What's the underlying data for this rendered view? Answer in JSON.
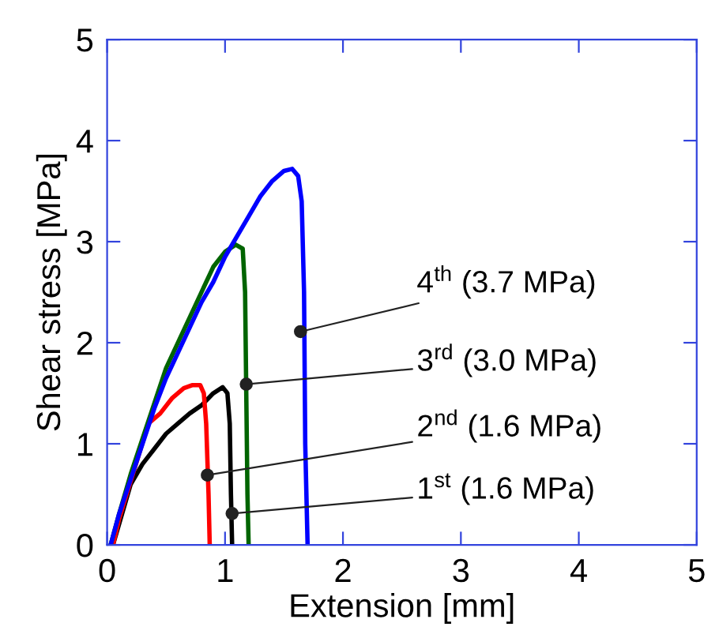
{
  "chart_data": {
    "type": "line",
    "xlabel": "Extension [mm]",
    "ylabel": "Shear stress [MPa]",
    "xlim": [
      0,
      5
    ],
    "ylim": [
      0,
      5
    ],
    "xticks": [
      0,
      1,
      2,
      3,
      4,
      5
    ],
    "yticks": [
      0,
      1,
      2,
      3,
      4,
      5
    ],
    "grid": false,
    "legend": false,
    "marker": "none",
    "line_style": "solid",
    "series": [
      {
        "color": "#000000",
        "x": [
          0.05,
          0.1,
          0.2,
          0.3,
          0.4,
          0.5,
          0.6,
          0.7,
          0.8,
          0.9,
          0.98,
          1.02,
          1.04,
          1.05,
          1.06
        ],
        "values": [
          0,
          0.2,
          0.6,
          0.8,
          0.95,
          1.1,
          1.2,
          1.3,
          1.38,
          1.5,
          1.56,
          1.5,
          1.2,
          0.5,
          0
        ]
      },
      {
        "color": "#ff0000",
        "x": [
          0.05,
          0.1,
          0.35,
          0.45,
          0.55,
          0.65,
          0.72,
          0.79,
          0.82,
          0.84,
          0.86,
          0.87
        ],
        "values": [
          0,
          0.25,
          1.2,
          1.3,
          1.45,
          1.55,
          1.58,
          1.58,
          1.5,
          1.2,
          0.5,
          0
        ]
      },
      {
        "color": "#006400",
        "x": [
          0.03,
          0.1,
          0.2,
          0.3,
          0.4,
          0.5,
          0.6,
          0.7,
          0.8,
          0.9,
          1.0,
          1.09,
          1.15,
          1.17,
          1.18,
          1.19,
          1.2
        ],
        "values": [
          0,
          0.3,
          0.7,
          1.05,
          1.4,
          1.75,
          2.0,
          2.25,
          2.5,
          2.75,
          2.9,
          2.97,
          2.93,
          2.5,
          1.5,
          0.5,
          0
        ]
      },
      {
        "color": "#0000ff",
        "x": [
          0.03,
          0.1,
          0.2,
          0.3,
          0.4,
          0.5,
          0.6,
          0.7,
          0.8,
          0.9,
          1.0,
          1.1,
          1.2,
          1.3,
          1.4,
          1.5,
          1.57,
          1.62,
          1.65,
          1.67,
          1.68,
          1.7
        ],
        "values": [
          0,
          0.3,
          0.65,
          1.0,
          1.35,
          1.65,
          1.9,
          2.15,
          2.4,
          2.6,
          2.85,
          3.05,
          3.25,
          3.45,
          3.6,
          3.7,
          3.72,
          3.65,
          3.4,
          2.5,
          1.0,
          0
        ]
      }
    ],
    "annotations": [
      {
        "text": "4$^{th}$ (3.7 MPa)",
        "x": 1.64,
        "y": 2.11
      },
      {
        "text": "3$^{rd}$ (3.0 MPa)",
        "x": 1.18,
        "y": 1.59
      },
      {
        "text": "2$^{nd}$ (1.6 MPa)",
        "x": 0.85,
        "y": 0.69
      },
      {
        "text": "1$^{st}$ (1.6 MPa)",
        "x": 1.06,
        "y": 0.31
      }
    ]
  }
}
